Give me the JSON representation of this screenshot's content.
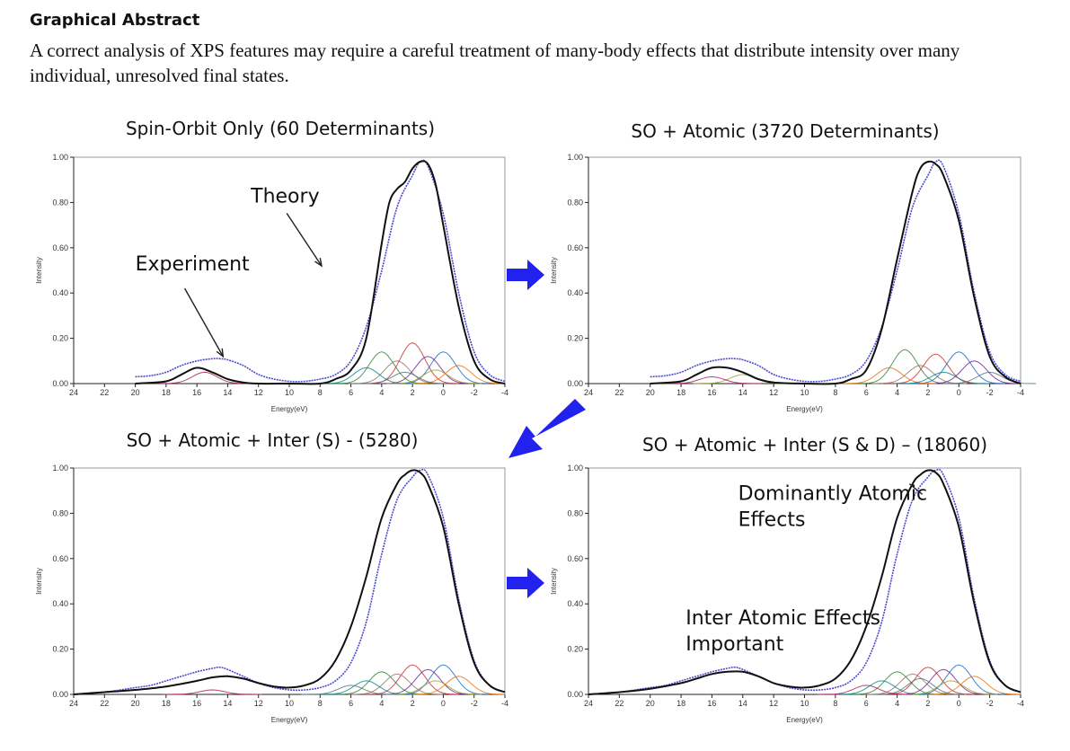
{
  "header": {
    "title": "Graphical Abstract",
    "text": "A correct analysis of XPS features may require a careful treatment of many-body effects that distribute intensity over many individual, unresolved final states."
  },
  "colors": {
    "theory": "#111111",
    "experiment": "#4a4ad0",
    "arrow": "#2222ee",
    "components": [
      "#2e7d32",
      "#c62828",
      "#1565c0",
      "#8d6e63",
      "#6a1b9a",
      "#ef6c00",
      "#00838f",
      "#9e9d24",
      "#ad1457",
      "#546e7a"
    ]
  },
  "arrows": {
    "count": 3,
    "icon": "blue-arrow-icon"
  },
  "chart_data": [
    {
      "type": "line",
      "title": "Spin-Orbit Only (60 Determinants)",
      "xlabel": "Energy(eV)",
      "ylabel": "Intensity",
      "xlim": [
        24,
        -4
      ],
      "ylim": [
        0,
        1
      ],
      "x_ticks": [
        24,
        22,
        20,
        18,
        16,
        14,
        12,
        10,
        8,
        6,
        4,
        2,
        0,
        -2,
        -4
      ],
      "y_ticks": [
        "0.00",
        "0.20",
        "0.40",
        "0.60",
        "0.80",
        "1.00"
      ],
      "series": [
        {
          "x": [
            20,
            19,
            18,
            17,
            16,
            15,
            14.5,
            14,
            13,
            12,
            11,
            10,
            9,
            8,
            7,
            6,
            5,
            4,
            3,
            2,
            1.5,
            1,
            0,
            -1,
            -2,
            -3,
            -4
          ],
          "y": [
            0.03,
            0.035,
            0.05,
            0.08,
            0.1,
            0.11,
            0.11,
            0.105,
            0.08,
            0.04,
            0.02,
            0.01,
            0.01,
            0.02,
            0.04,
            0.1,
            0.25,
            0.5,
            0.78,
            0.92,
            0.98,
            0.96,
            0.75,
            0.4,
            0.14,
            0.04,
            0.01
          ]
        },
        {
          "x": [
            20,
            18,
            17,
            16,
            15,
            14,
            13,
            12,
            10,
            8,
            7,
            6,
            5,
            4,
            3.5,
            3,
            2.5,
            2,
            1.5,
            1,
            0.5,
            0,
            -1,
            -2,
            -3,
            -4
          ],
          "y": [
            0,
            0.01,
            0.04,
            0.07,
            0.05,
            0.02,
            0.005,
            0,
            0,
            0,
            0.02,
            0.06,
            0.2,
            0.62,
            0.8,
            0.86,
            0.89,
            0.95,
            0.98,
            0.97,
            0.88,
            0.7,
            0.34,
            0.1,
            0.02,
            0
          ]
        }
      ],
      "components": [
        {
          "center": 4,
          "height": 0.14
        },
        {
          "center": 2,
          "height": 0.18
        },
        {
          "center": 0,
          "height": 0.14
        },
        {
          "center": 3,
          "height": 0.1
        },
        {
          "center": 1,
          "height": 0.12
        },
        {
          "center": -1,
          "height": 0.08
        },
        {
          "center": 5,
          "height": 0.07
        },
        {
          "center": 0.5,
          "height": 0.06
        },
        {
          "center": 15.5,
          "height": 0.05
        },
        {
          "center": 2.5,
          "height": 0.05
        }
      ],
      "annotations": [
        {
          "text": "Theory",
          "tx": 12.5,
          "ty": 0.8,
          "ax": 7.9,
          "ay": 0.52
        },
        {
          "text": "Experiment",
          "tx": 20.0,
          "ty": 0.5,
          "ax": 14.3,
          "ay": 0.12
        }
      ]
    },
    {
      "type": "line",
      "title": "SO + Atomic (3720 Determinants)",
      "xlabel": "Energy(eV)",
      "ylabel": "Intensity",
      "xlim": [
        24,
        -4
      ],
      "ylim": [
        0,
        1
      ],
      "x_ticks": [
        24,
        22,
        20,
        18,
        16,
        14,
        12,
        10,
        8,
        6,
        4,
        2,
        0,
        -2,
        -4
      ],
      "y_ticks": [
        "0.00",
        "0.20",
        "0.40",
        "0.60",
        "0.80",
        "1.00"
      ],
      "series": [
        {
          "x": [
            20,
            19,
            18,
            17,
            16,
            15,
            14.5,
            14,
            13,
            12,
            11,
            10,
            9,
            8,
            7,
            6,
            5,
            4,
            3,
            2,
            1.5,
            1,
            0,
            -1,
            -2,
            -3,
            -4
          ],
          "y": [
            0.03,
            0.035,
            0.05,
            0.08,
            0.1,
            0.11,
            0.11,
            0.105,
            0.08,
            0.04,
            0.02,
            0.01,
            0.01,
            0.02,
            0.04,
            0.1,
            0.25,
            0.5,
            0.78,
            0.92,
            0.98,
            0.96,
            0.75,
            0.4,
            0.14,
            0.04,
            0.01
          ]
        },
        {
          "x": [
            20,
            18,
            17,
            16,
            15,
            14,
            13,
            12,
            10,
            8,
            7,
            6,
            5,
            4,
            3,
            2.5,
            2,
            1.5,
            1,
            0,
            -1,
            -2,
            -3,
            -4
          ],
          "y": [
            0,
            0.01,
            0.04,
            0.07,
            0.07,
            0.05,
            0.02,
            0.005,
            0,
            0,
            0.02,
            0.06,
            0.24,
            0.55,
            0.85,
            0.95,
            0.98,
            0.97,
            0.92,
            0.72,
            0.38,
            0.12,
            0.03,
            0
          ]
        }
      ],
      "components": [
        {
          "center": 3.5,
          "height": 0.15
        },
        {
          "center": 1.5,
          "height": 0.13
        },
        {
          "center": 0,
          "height": 0.14
        },
        {
          "center": 2.5,
          "height": 0.08
        },
        {
          "center": -1,
          "height": 0.1
        },
        {
          "center": 4.5,
          "height": 0.07
        },
        {
          "center": 1,
          "height": 0.05
        },
        {
          "center": 14,
          "height": 0.04
        },
        {
          "center": 16,
          "height": 0.03
        },
        {
          "center": -2,
          "height": 0.05
        }
      ],
      "annotations": []
    },
    {
      "type": "line",
      "title": "SO + Atomic + Inter (S) - (5280)",
      "xlabel": "Energy(eV)",
      "ylabel": "Intensity",
      "xlim": [
        24,
        -4
      ],
      "ylim": [
        0,
        1
      ],
      "x_ticks": [
        24,
        22,
        20,
        18,
        16,
        14,
        12,
        10,
        8,
        6,
        4,
        2,
        0,
        -2,
        -4
      ],
      "y_ticks": [
        "0.00",
        "0.20",
        "0.40",
        "0.60",
        "0.80",
        "1.00"
      ],
      "series": [
        {
          "x": [
            24,
            22,
            20,
            19,
            18,
            17,
            16,
            15,
            14.5,
            14,
            13,
            12,
            11,
            10,
            9,
            8,
            7,
            6,
            5,
            4,
            3,
            2,
            1.5,
            1,
            0,
            -1,
            -2,
            -3,
            -4
          ],
          "y": [
            0,
            0.01,
            0.03,
            0.04,
            0.06,
            0.08,
            0.1,
            0.115,
            0.12,
            0.11,
            0.08,
            0.05,
            0.03,
            0.02,
            0.02,
            0.03,
            0.06,
            0.14,
            0.32,
            0.62,
            0.86,
            0.96,
            0.99,
            0.97,
            0.78,
            0.42,
            0.15,
            0.04,
            0.01
          ]
        },
        {
          "x": [
            24,
            22,
            20,
            18,
            16,
            15,
            14,
            13,
            12,
            11,
            10,
            9,
            8,
            7,
            6,
            5,
            4,
            3,
            2.5,
            2,
            1.5,
            1,
            0,
            -1,
            -2,
            -3,
            -4
          ],
          "y": [
            0,
            0.01,
            0.02,
            0.035,
            0.06,
            0.075,
            0.08,
            0.07,
            0.05,
            0.035,
            0.03,
            0.04,
            0.07,
            0.15,
            0.3,
            0.52,
            0.78,
            0.93,
            0.97,
            0.99,
            0.98,
            0.93,
            0.74,
            0.4,
            0.14,
            0.04,
            0.01
          ]
        }
      ],
      "components": [
        {
          "center": 4,
          "height": 0.1
        },
        {
          "center": 2,
          "height": 0.13
        },
        {
          "center": 0,
          "height": 0.13
        },
        {
          "center": 3,
          "height": 0.09
        },
        {
          "center": 1,
          "height": 0.11
        },
        {
          "center": -1,
          "height": 0.08
        },
        {
          "center": 5,
          "height": 0.06
        },
        {
          "center": 0.5,
          "height": 0.06
        },
        {
          "center": 15,
          "height": 0.02
        },
        {
          "center": 6,
          "height": 0.04
        }
      ],
      "annotations": []
    },
    {
      "type": "line",
      "title": "SO + Atomic + Inter (S & D) – (18060)",
      "xlabel": "Energy(eV)",
      "ylabel": "Intensity",
      "xlim": [
        24,
        -4
      ],
      "ylim": [
        0,
        1
      ],
      "x_ticks": [
        24,
        22,
        20,
        18,
        16,
        14,
        12,
        10,
        8,
        6,
        4,
        2,
        0,
        -2,
        -4
      ],
      "y_ticks": [
        "0.00",
        "0.20",
        "0.40",
        "0.60",
        "0.80",
        "1.00"
      ],
      "series": [
        {
          "x": [
            24,
            22,
            20,
            19,
            18,
            17,
            16,
            15,
            14.5,
            14,
            13,
            12,
            11,
            10,
            9,
            8,
            7,
            6,
            5,
            4,
            3,
            2,
            1.5,
            1,
            0,
            -1,
            -2,
            -3,
            -4
          ],
          "y": [
            0,
            0.01,
            0.03,
            0.04,
            0.06,
            0.08,
            0.1,
            0.115,
            0.12,
            0.11,
            0.08,
            0.05,
            0.03,
            0.02,
            0.02,
            0.03,
            0.06,
            0.14,
            0.32,
            0.62,
            0.86,
            0.96,
            0.99,
            0.97,
            0.78,
            0.42,
            0.15,
            0.04,
            0.01
          ]
        },
        {
          "x": [
            24,
            22,
            20,
            18,
            17,
            16,
            15,
            14,
            13,
            12,
            11,
            10,
            9,
            8,
            7,
            6,
            5,
            4,
            3,
            2.5,
            2,
            1.5,
            1,
            0,
            -1,
            -2,
            -3,
            -4
          ],
          "y": [
            0,
            0.01,
            0.025,
            0.05,
            0.07,
            0.09,
            0.1,
            0.1,
            0.08,
            0.05,
            0.035,
            0.03,
            0.04,
            0.07,
            0.15,
            0.3,
            0.52,
            0.78,
            0.93,
            0.97,
            0.99,
            0.98,
            0.93,
            0.74,
            0.4,
            0.14,
            0.04,
            0.01
          ]
        }
      ],
      "components": [
        {
          "center": 4,
          "height": 0.1
        },
        {
          "center": 2,
          "height": 0.12
        },
        {
          "center": 0,
          "height": 0.13
        },
        {
          "center": 3,
          "height": 0.09
        },
        {
          "center": 1,
          "height": 0.11
        },
        {
          "center": -1,
          "height": 0.08
        },
        {
          "center": 5,
          "height": 0.06
        },
        {
          "center": 0.5,
          "height": 0.06
        },
        {
          "center": 6,
          "height": 0.04
        },
        {
          "center": 2.5,
          "height": 0.07
        }
      ],
      "annotations": [
        {
          "text": "Dominantly Atomic",
          "line2": "Effects",
          "tx": 14.3,
          "ty": 0.86,
          "ax": 3.2,
          "ay": 0.93
        },
        {
          "text": "Inter Atomic Effects",
          "line2": "Important",
          "tx": 17.7,
          "ty": 0.31,
          "ax": 0,
          "ay": 0
        }
      ]
    }
  ]
}
